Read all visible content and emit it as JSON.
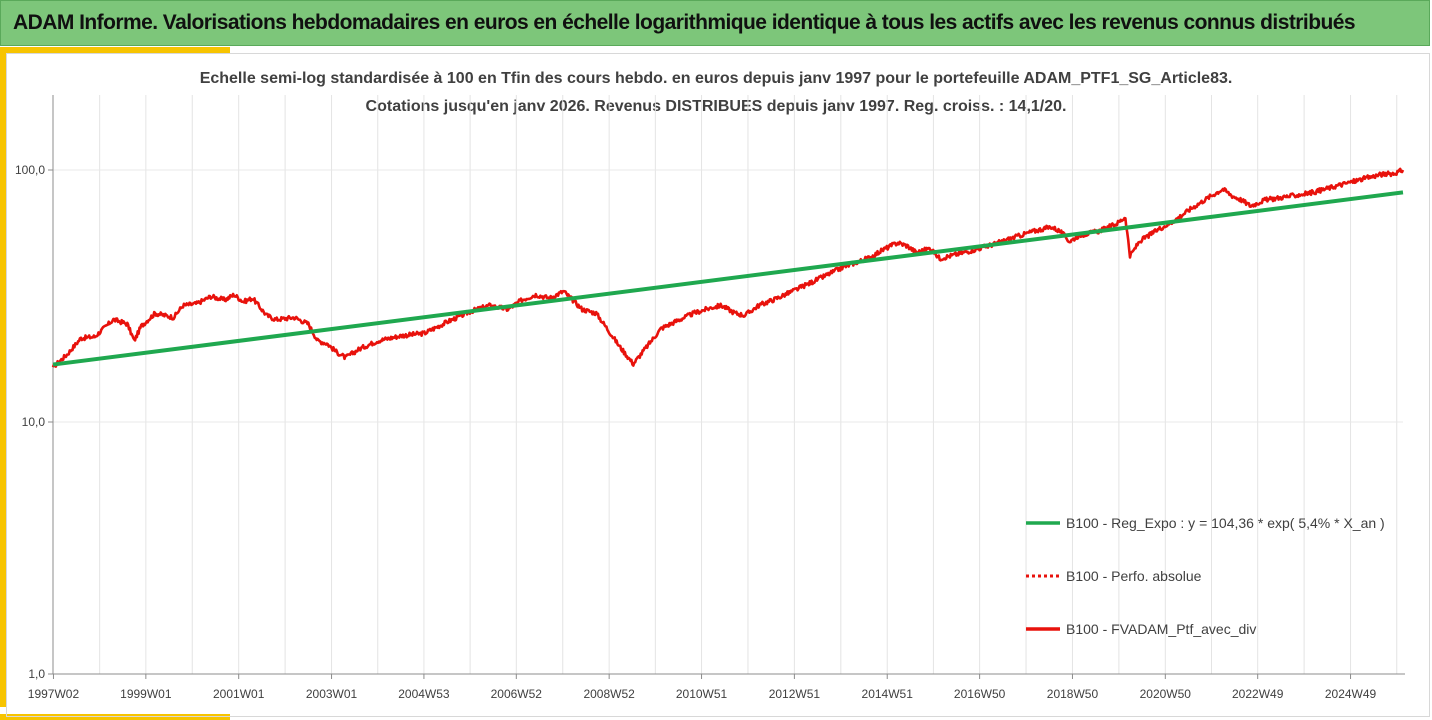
{
  "banner": {
    "title": "ADAM Informe. Valorisations hebdomadaires en euros en échelle logarithmique identique à tous les actifs avec les revenus connus distribués"
  },
  "colors": {
    "banner_bg": "#7dc67a",
    "accent": "#f7c400",
    "regression": "#1fa84f",
    "portfolio": "#e8120c"
  },
  "chart_data": {
    "type": "line",
    "title_line1": "Echelle semi-log standardisée  à 100 en Tfin des cours hebdo.  en euros depuis janv 1997 pour le portefeuille ADAM_PTF1_SG_Article83.",
    "title_line2": "Cotations  jusqu'en janv 2026. Revenus DISTRIBUES depuis janv 1997. Reg. croiss. : 14,1/20.",
    "y_scale": "log",
    "ylim": [
      1,
      100
    ],
    "y_ticks": [
      "1,0",
      "10,0",
      "100,0"
    ],
    "xlim": [
      1997.0,
      2026.08
    ],
    "x_ticks": [
      {
        "label": "1997W02",
        "x": 1997.01
      },
      {
        "label": "1999W01",
        "x": 1999.0
      },
      {
        "label": "2001W01",
        "x": 2001.0
      },
      {
        "label": "2003W01",
        "x": 2003.0
      },
      {
        "label": "2004W53",
        "x": 2004.99
      },
      {
        "label": "2006W52",
        "x": 2006.98
      },
      {
        "label": "2008W52",
        "x": 2008.98
      },
      {
        "label": "2010W51",
        "x": 2010.97
      },
      {
        "label": "2012W51",
        "x": 2012.97
      },
      {
        "label": "2014W51",
        "x": 2014.97
      },
      {
        "label": "2016W50",
        "x": 2016.96
      },
      {
        "label": "2018W50",
        "x": 2018.96
      },
      {
        "label": "2020W50",
        "x": 2020.96
      },
      {
        "label": "2022W49",
        "x": 2022.95
      },
      {
        "label": "2024W49",
        "x": 2024.95
      }
    ],
    "grid": "vertical",
    "legend_position": "right",
    "series": [
      {
        "name": "B100 - Reg_Expo : y = 104,36 * exp( 5,4% *  X_an )",
        "style": "solid",
        "color": "#1fa84f",
        "x": [
          1997.0,
          2026.08
        ],
        "y": [
          16.9,
          81.5
        ]
      },
      {
        "name": "B100 - Perfo. absolue",
        "style": "dotted",
        "color": "#e8120c",
        "x": [],
        "y": []
      },
      {
        "name": "B100 - FVADAM_Ptf_avec_div",
        "style": "solid",
        "color": "#e8120c",
        "x": [
          1997.0,
          1997.3,
          1997.6,
          1997.9,
          1998.3,
          1998.6,
          1998.75,
          1998.9,
          1999.2,
          1999.6,
          1999.8,
          2000.1,
          2000.4,
          2000.7,
          2000.9,
          2001.1,
          2001.3,
          2001.6,
          2001.8,
          2002.2,
          2002.5,
          2002.7,
          2002.9,
          2003.1,
          2003.3,
          2003.6,
          2004.0,
          2004.5,
          2005.0,
          2005.5,
          2006.0,
          2006.4,
          2006.8,
          2007.1,
          2007.4,
          2007.7,
          2008.0,
          2008.4,
          2008.7,
          2008.9,
          2009.2,
          2009.5,
          2009.8,
          2010.1,
          2010.4,
          2010.8,
          2011.2,
          2011.4,
          2011.7,
          2011.9,
          2012.2,
          2012.6,
          2013.0,
          2013.5,
          2014.0,
          2014.3,
          2014.6,
          2014.9,
          2015.2,
          2015.4,
          2015.6,
          2015.9,
          2016.1,
          2016.5,
          2016.9,
          2017.3,
          2017.7,
          2018.1,
          2018.5,
          2018.7,
          2018.9,
          2019.1,
          2019.5,
          2019.9,
          2020.1,
          2020.2,
          2020.4,
          2020.8,
          2021.1,
          2021.5,
          2021.9,
          2022.2,
          2022.4,
          2022.6,
          2022.8,
          2023.1,
          2023.5,
          2023.9,
          2024.2,
          2024.6,
          2024.9,
          2025.1,
          2025.3,
          2025.6,
          2025.9,
          2026.08
        ],
        "y": [
          16.5,
          18.5,
          21.5,
          21.8,
          25.5,
          24.5,
          21.0,
          24.0,
          27.0,
          26.0,
          29.0,
          29.5,
          31.5,
          30.5,
          32.0,
          30.0,
          31.0,
          26.5,
          25.5,
          26.0,
          24.5,
          21.0,
          20.5,
          19.0,
          18.0,
          19.5,
          21.0,
          22.0,
          22.5,
          25.0,
          27.5,
          29.0,
          28.0,
          30.5,
          32.0,
          31.0,
          33.0,
          28.0,
          27.0,
          24.0,
          20.0,
          17.0,
          20.0,
          23.5,
          25.0,
          27.0,
          28.5,
          29.0,
          27.0,
          26.5,
          29.0,
          31.0,
          33.5,
          37.0,
          41.0,
          43.0,
          45.0,
          48.5,
          51.5,
          50.0,
          47.0,
          49.0,
          44.5,
          46.5,
          48.5,
          51.0,
          54.0,
          57.0,
          59.5,
          57.0,
          52.0,
          55.0,
          57.0,
          61.0,
          65.0,
          45.5,
          52.0,
          58.0,
          62.0,
          70.0,
          78.0,
          84.0,
          79.0,
          76.0,
          72.0,
          76.0,
          78.0,
          80.0,
          82.0,
          86.0,
          89.0,
          91.0,
          93.0,
          96.0,
          97.0,
          100.0
        ]
      }
    ]
  }
}
